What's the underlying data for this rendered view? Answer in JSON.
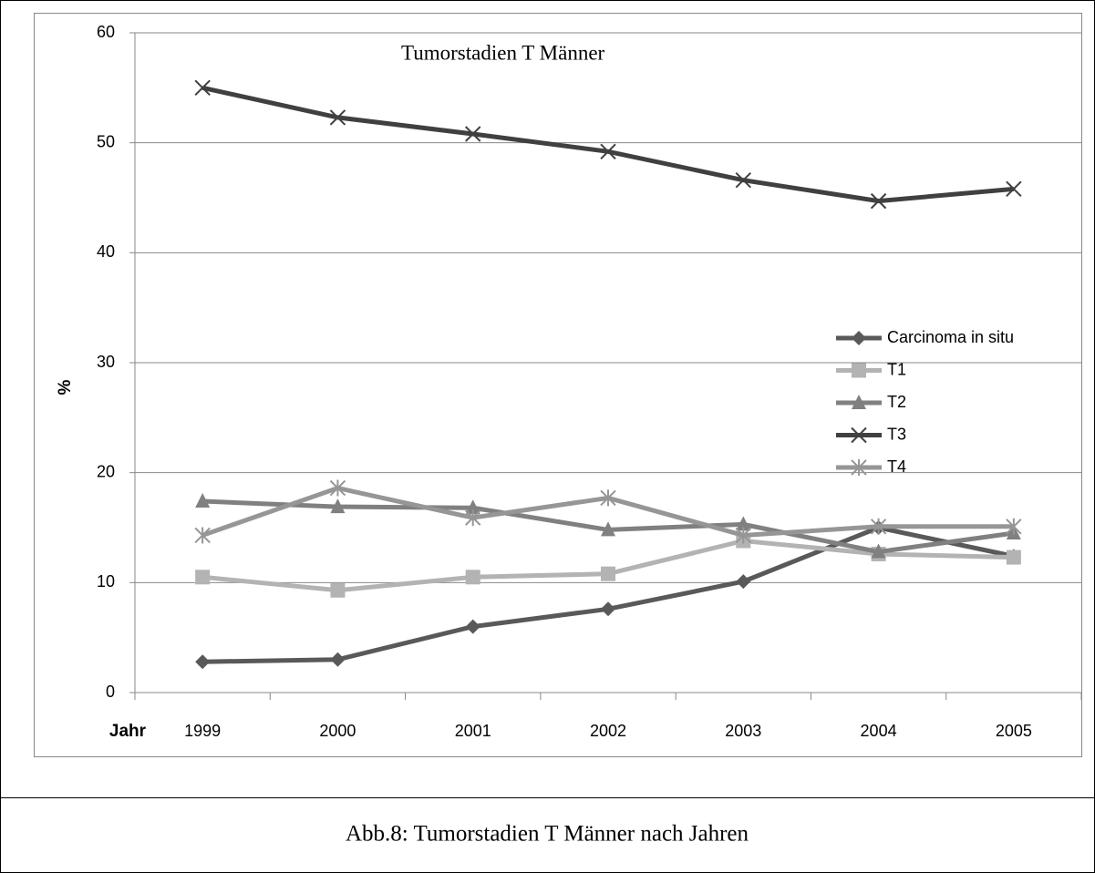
{
  "chart_data": {
    "type": "line",
    "title": "Tumorstadien T Männer",
    "ylabel": "%",
    "xlabel": "Jahr",
    "categories": [
      "1999",
      "2000",
      "2001",
      "2002",
      "2003",
      "2004",
      "2005"
    ],
    "series": [
      {
        "name": "Carcinoma in situ",
        "color": "#595959",
        "marker": "diamond",
        "values": [
          2.8,
          3.0,
          6.0,
          7.6,
          10.1,
          15.0,
          12.4
        ]
      },
      {
        "name": "T1",
        "color": "#b3b3b3",
        "marker": "square",
        "values": [
          10.5,
          9.3,
          10.5,
          10.8,
          13.8,
          12.6,
          12.3
        ]
      },
      {
        "name": "T2",
        "color": "#808080",
        "marker": "triangle",
        "values": [
          17.4,
          16.9,
          16.8,
          14.8,
          15.3,
          12.8,
          14.5
        ]
      },
      {
        "name": "T3",
        "color": "#404040",
        "marker": "x",
        "values": [
          55.0,
          52.3,
          50.8,
          49.2,
          46.6,
          44.7,
          45.8
        ]
      },
      {
        "name": "T4",
        "color": "#969696",
        "marker": "asterisk",
        "values": [
          14.3,
          18.6,
          15.9,
          17.7,
          14.3,
          15.1,
          15.1
        ]
      }
    ],
    "ylim": [
      0,
      60
    ],
    "yticks": [
      0,
      10,
      20,
      30,
      40,
      50,
      60
    ],
    "grid": true,
    "legend": "right"
  },
  "caption": "Abb.8: Tumorstadien T Männer nach Jahren"
}
